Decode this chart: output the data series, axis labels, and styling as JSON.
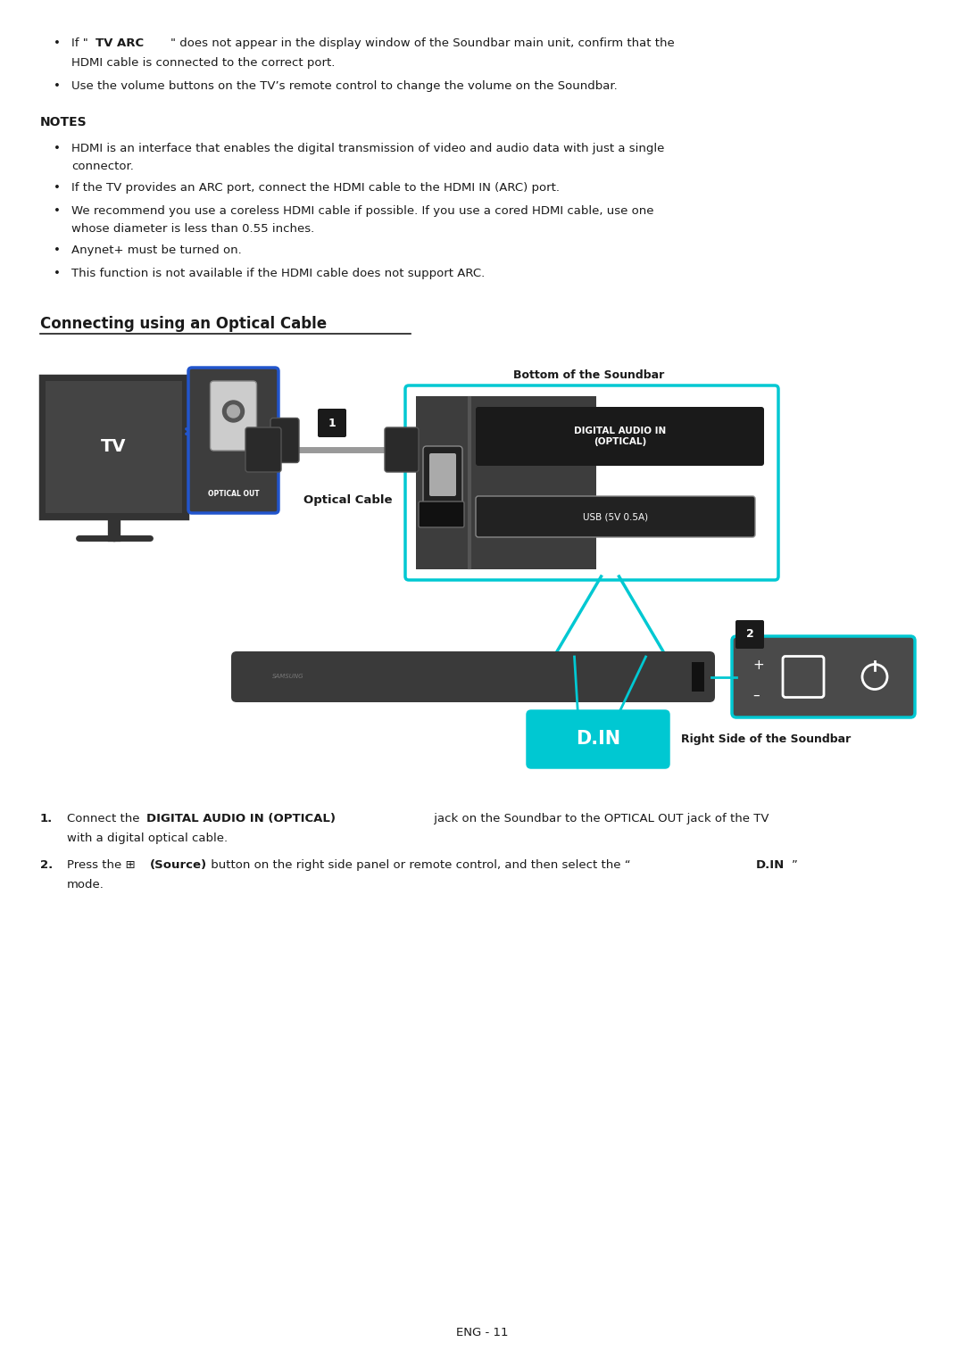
{
  "bg_color": "#ffffff",
  "text_color": "#1a1a1a",
  "page_width": 10.8,
  "page_height": 15.32,
  "footer": "ENG - 11",
  "cyan_color": "#00c8d2",
  "blue_color": "#2255cc",
  "dark_gray": "#3a3a3a",
  "panel_gray": "#4a4a4a",
  "notes": [
    "HDMI is an interface that enables the digital transmission of video and audio data with just a single connector.",
    "If the TV provides an ARC port, connect the HDMI cable to the HDMI IN (ARC) port.",
    "We recommend you use a coreless HDMI cable if possible. If you use a cored HDMI cable, use one whose diameter is less than 0.55 inches.",
    "Anynet+ must be turned on.",
    "This function is not available if the HDMI cable does not support ARC."
  ]
}
